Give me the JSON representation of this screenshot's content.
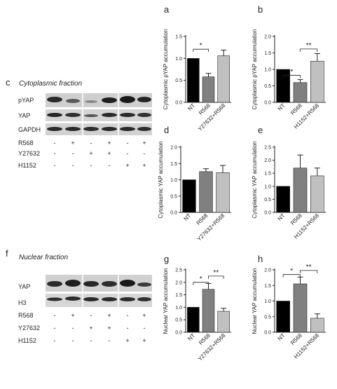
{
  "left": {
    "c": {
      "letter": "c",
      "title": "Cytoplasmic fraction",
      "bands": [
        "pYAP",
        "YAP",
        "GAPDH"
      ],
      "conditions": [
        {
          "name": "R568",
          "signs": [
            "-",
            "+",
            "-",
            "+",
            "-",
            "+"
          ]
        },
        {
          "name": "Y27632",
          "signs": [
            "-",
            "-",
            "+",
            "+",
            "-",
            "-"
          ]
        },
        {
          "name": "H1152",
          "signs": [
            "-",
            "-",
            "-",
            "-",
            "+",
            "+"
          ]
        }
      ]
    },
    "f": {
      "letter": "f",
      "title": "Nuclear fraction",
      "bands": [
        "YAP",
        "H3"
      ],
      "conditions": [
        {
          "name": "R568",
          "signs": [
            "-",
            "+",
            "-",
            "+",
            "-",
            "+"
          ]
        },
        {
          "name": "Y27632",
          "signs": [
            "-",
            "-",
            "+",
            "+",
            "-",
            "-"
          ]
        },
        {
          "name": "H1152",
          "signs": [
            "-",
            "-",
            "-",
            "-",
            "+",
            "+"
          ]
        }
      ]
    }
  },
  "colors": {
    "NT": "#000000",
    "R568": "#808080",
    "third": "#c0c0c0"
  },
  "chart_data": [
    {
      "panel": "a",
      "type": "bar",
      "categories": [
        "NT",
        "R568",
        "Y27632+R568"
      ],
      "values": [
        1.0,
        0.58,
        1.06
      ],
      "errors": [
        0,
        0.08,
        0.13
      ],
      "ylabel": "Cytoplasmic pYAP accumulation",
      "ylim": [
        0,
        1.5
      ],
      "yticks": [
        "0.0",
        "0.5",
        "1.0",
        "1.5"
      ],
      "sig": [
        {
          "from": 0,
          "to": 1,
          "label": "*",
          "level": 1.21
        }
      ]
    },
    {
      "panel": "b",
      "type": "bar",
      "categories": [
        "NT",
        "R568",
        "H1152+R568"
      ],
      "values": [
        1.0,
        0.6,
        1.25
      ],
      "errors": [
        0,
        0.09,
        0.23
      ],
      "ylabel": "Cytoplasmic pYAP accumulation",
      "ylim": [
        0,
        2.0
      ],
      "yticks": [
        "0.0",
        "0.5",
        "1.0",
        "1.5",
        "2.0"
      ],
      "sig": [
        {
          "from": 0,
          "to": 1,
          "label": "*",
          "level": 0.82
        },
        {
          "from": 1,
          "to": 2,
          "label": "**",
          "level": 1.62
        }
      ]
    },
    {
      "panel": "d",
      "type": "bar",
      "categories": [
        "NT",
        "R568",
        "Y27632+R568"
      ],
      "values": [
        1.0,
        1.25,
        1.22
      ],
      "errors": [
        0,
        0.09,
        0.22
      ],
      "ylabel": "Cytoplasmic YAP accumulation",
      "ylim": [
        0,
        2.0
      ],
      "yticks": [
        "0.0",
        "0.5",
        "1.0",
        "1.5",
        "2.0"
      ],
      "sig": []
    },
    {
      "panel": "e",
      "type": "bar",
      "categories": [
        "NT",
        "R568",
        "H1152+R568"
      ],
      "values": [
        1.0,
        1.7,
        1.4
      ],
      "errors": [
        0,
        0.5,
        0.3
      ],
      "ylabel": "Cytoplasmic YAP accumulation",
      "ylim": [
        0,
        2.5
      ],
      "yticks": [
        "0.0",
        "0.5",
        "1.0",
        "1.5",
        "2.0",
        "2.5"
      ],
      "sig": []
    },
    {
      "panel": "g",
      "type": "bar",
      "categories": [
        "NT",
        "R568",
        "Y27632+R568"
      ],
      "values": [
        1.0,
        1.72,
        0.84
      ],
      "errors": [
        0,
        0.23,
        0.12
      ],
      "ylabel": "Nuclear YAP accumulation",
      "ylim": [
        0,
        2.5
      ],
      "yticks": [
        "0.0",
        "0.5",
        "1.0",
        "1.5",
        "2.0",
        "2.5"
      ],
      "sig": [
        {
          "from": 0,
          "to": 1,
          "label": "*",
          "level": 2.0
        },
        {
          "from": 1,
          "to": 2,
          "label": "**",
          "level": 2.25
        }
      ]
    },
    {
      "panel": "h",
      "type": "bar",
      "categories": [
        "NT",
        "R568",
        "H1152+R568"
      ],
      "values": [
        1.0,
        1.55,
        0.45
      ],
      "errors": [
        0,
        0.22,
        0.14
      ],
      "ylabel": "Nuclear YAP accumulation",
      "ylim": [
        0,
        2.0
      ],
      "yticks": [
        "0.0",
        "0.5",
        "1.0",
        "1.5",
        "2.0"
      ],
      "sig": [
        {
          "from": 0,
          "to": 1,
          "label": "*",
          "level": 1.85
        },
        {
          "from": 1,
          "to": 2,
          "label": "**",
          "level": 1.98
        }
      ]
    }
  ]
}
